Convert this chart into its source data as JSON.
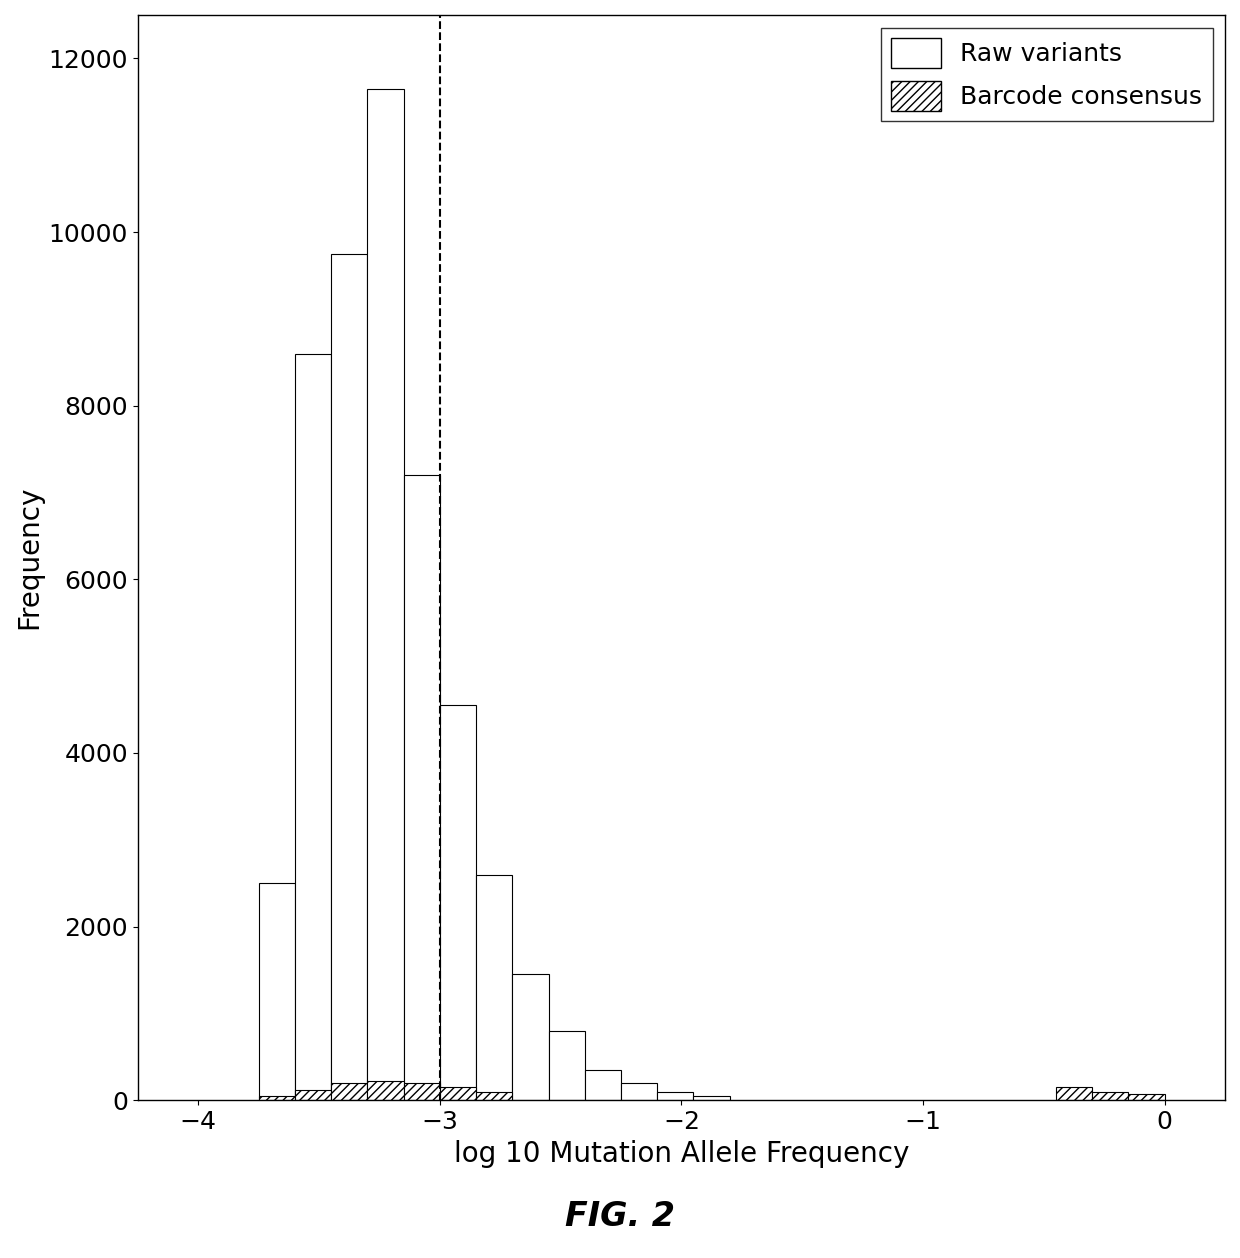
{
  "title": "FIG. 2",
  "xlabel": "log 10 Mutation Allele Frequency",
  "ylabel": "Frequency",
  "xlim": [
    -4.25,
    0.25
  ],
  "ylim": [
    0,
    12500
  ],
  "yticks": [
    0,
    2000,
    4000,
    6000,
    8000,
    10000,
    12000
  ],
  "xticks": [
    -4,
    -3,
    -2,
    -1,
    0
  ],
  "vline_x": -3.0,
  "bin_width": 0.15,
  "raw_bin_lefts": [
    -3.75,
    -3.6,
    -3.45,
    -3.3,
    -3.15,
    -3.0,
    -2.85,
    -2.7,
    -2.55,
    -2.4,
    -2.25,
    -2.1,
    -1.95
  ],
  "raw_heights": [
    2500,
    8600,
    9750,
    11650,
    7200,
    4550,
    2600,
    1450,
    800,
    350,
    200,
    100,
    50
  ],
  "barcode_bin_lefts": [
    -3.75,
    -3.6,
    -3.45,
    -3.3,
    -3.15,
    -3.0,
    -2.85,
    -0.45,
    -0.3,
    -0.15
  ],
  "barcode_heights": [
    50,
    120,
    200,
    220,
    200,
    150,
    100,
    150,
    100,
    70
  ],
  "legend_labels": [
    "Raw variants",
    "Barcode consensus"
  ],
  "raw_facecolor": "#ffffff",
  "raw_edgecolor": "#000000",
  "barcode_facecolor": "#ffffff",
  "barcode_edgecolor": "#000000",
  "background_color": "#ffffff",
  "font_size": 18,
  "label_font_size": 20,
  "title_font_size": 24
}
